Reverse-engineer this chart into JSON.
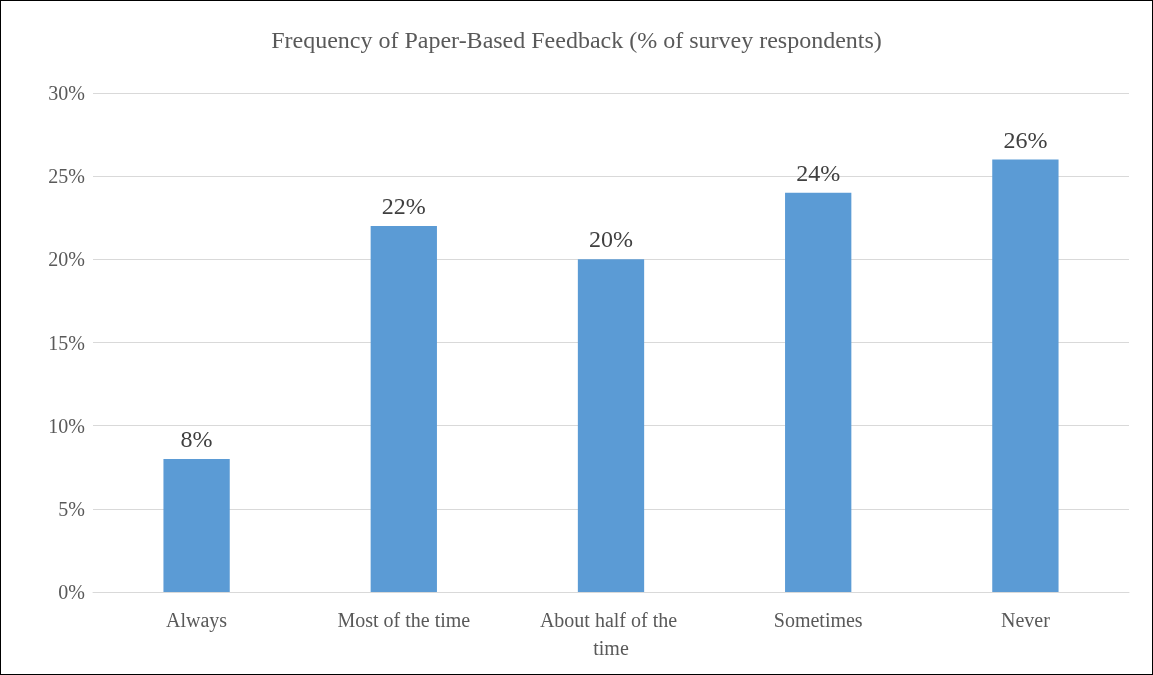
{
  "chart_data": {
    "type": "bar",
    "title": "Frequency of Paper-Based Feedback (% of survey respondents)",
    "categories": [
      "Always",
      "Most of the time",
      "About half of the time",
      "Sometimes",
      "Never"
    ],
    "values": [
      8,
      22,
      20,
      24,
      26
    ],
    "color": "#5b9bd5",
    "value_labels": [
      "8%",
      "22%",
      "20%",
      "24%",
      "26%"
    ],
    "ylim": [
      0,
      30
    ],
    "yticks": [
      {
        "value": 0,
        "label": "0%"
      },
      {
        "value": 5,
        "label": "5%"
      },
      {
        "value": 10,
        "label": "10%"
      },
      {
        "value": 15,
        "label": "15%"
      },
      {
        "value": 20,
        "label": "20%"
      },
      {
        "value": 25,
        "label": "25%"
      },
      {
        "value": 30,
        "label": "30%"
      }
    ],
    "grid": "y"
  }
}
